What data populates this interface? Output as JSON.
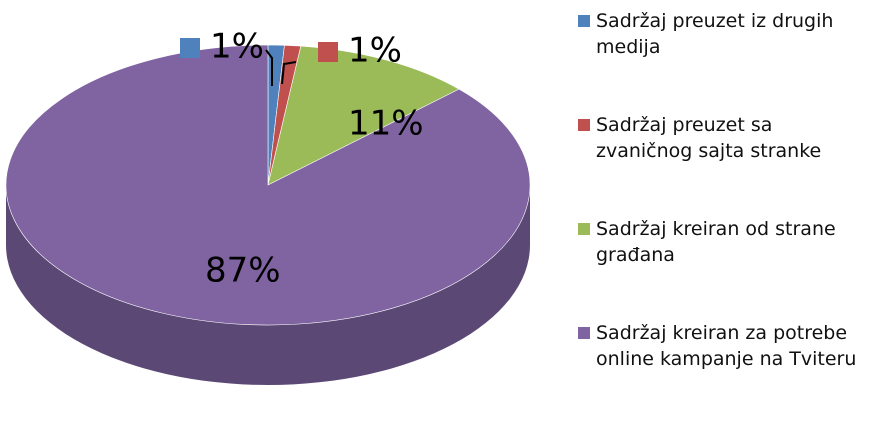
{
  "chart_data": {
    "type": "pie",
    "categories": [
      "Sadržaj preuzet iz drugih medija",
      "Sadržaj preuzet sa zvaničnog sajta stranke",
      "Sadržaj kreiran od strane građana",
      "Sadržaj kreiran za potrebe online kampanje na Tviteru"
    ],
    "values": [
      1,
      1,
      11,
      87
    ],
    "value_labels": [
      "1%",
      "1%",
      "11%",
      "87%"
    ],
    "colors": [
      "#4f81bd",
      "#c0504d",
      "#9bbb59",
      "#8064a2"
    ],
    "legend": "right"
  }
}
